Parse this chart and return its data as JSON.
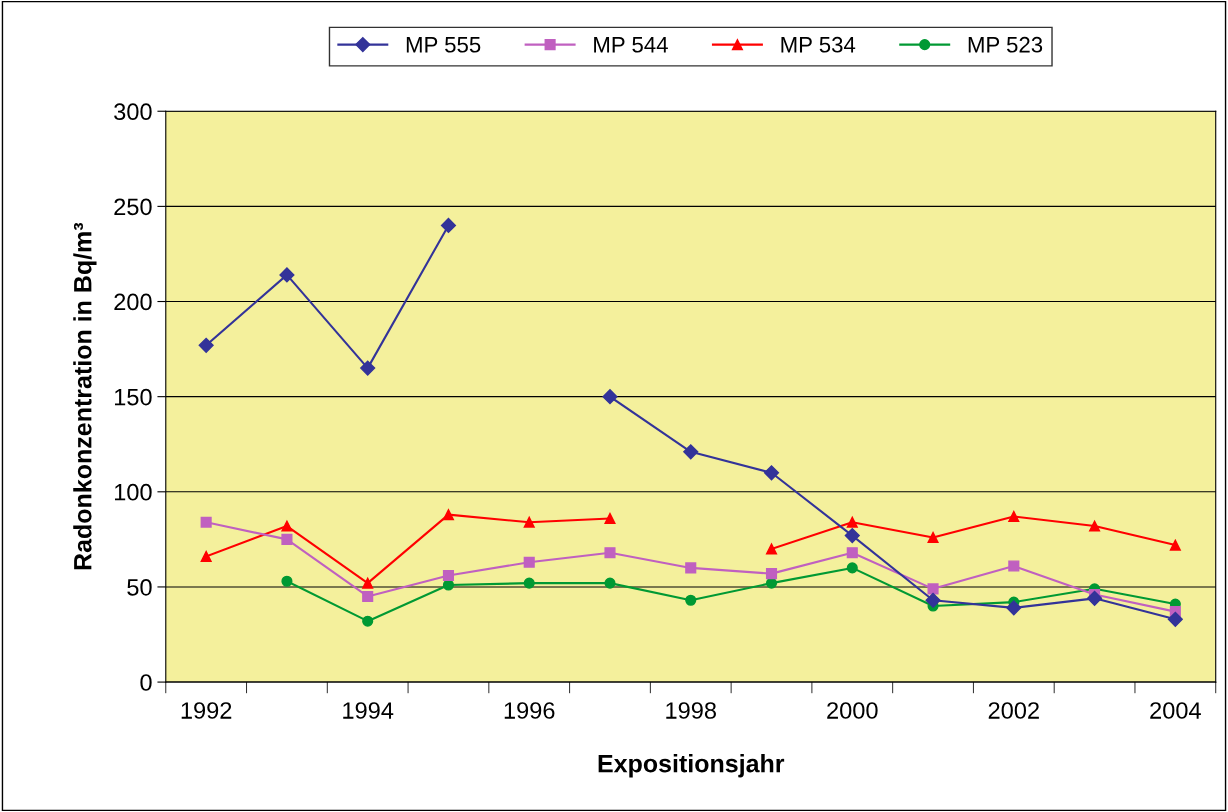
{
  "chart_data": {
    "type": "line",
    "xlabel": "Expositionsjahr",
    "ylabel": "Radonkonzentration in Bq/m³",
    "categories": [
      "1992",
      null,
      "1994",
      null,
      "1996",
      null,
      "1998",
      null,
      "2000",
      null,
      "2002",
      null,
      "2004"
    ],
    "series": [
      {
        "name": "MP 555",
        "color": "#333399",
        "marker": "diamond",
        "values": [
          177,
          214,
          165,
          240,
          null,
          150,
          121,
          110,
          77,
          43,
          39,
          44,
          33
        ]
      },
      {
        "name": "MP 544",
        "color": "#c060c0",
        "marker": "square",
        "values": [
          84,
          75,
          45,
          56,
          63,
          68,
          60,
          57,
          68,
          49,
          61,
          46,
          37
        ]
      },
      {
        "name": "MP 534",
        "color": "#ff0000",
        "marker": "triangle",
        "values": [
          66,
          82,
          52,
          88,
          84,
          86,
          null,
          70,
          84,
          76,
          87,
          82,
          72
        ]
      },
      {
        "name": "MP 523",
        "color": "#009933",
        "marker": "circle",
        "values": [
          null,
          53,
          32,
          51,
          52,
          52,
          43,
          52,
          60,
          40,
          42,
          49,
          41
        ]
      }
    ],
    "ylim": [
      0,
      300
    ],
    "yticks": [
      0,
      50,
      100,
      150,
      200,
      250,
      300
    ],
    "grid": "y",
    "legend": "top",
    "line_style": "solid"
  }
}
